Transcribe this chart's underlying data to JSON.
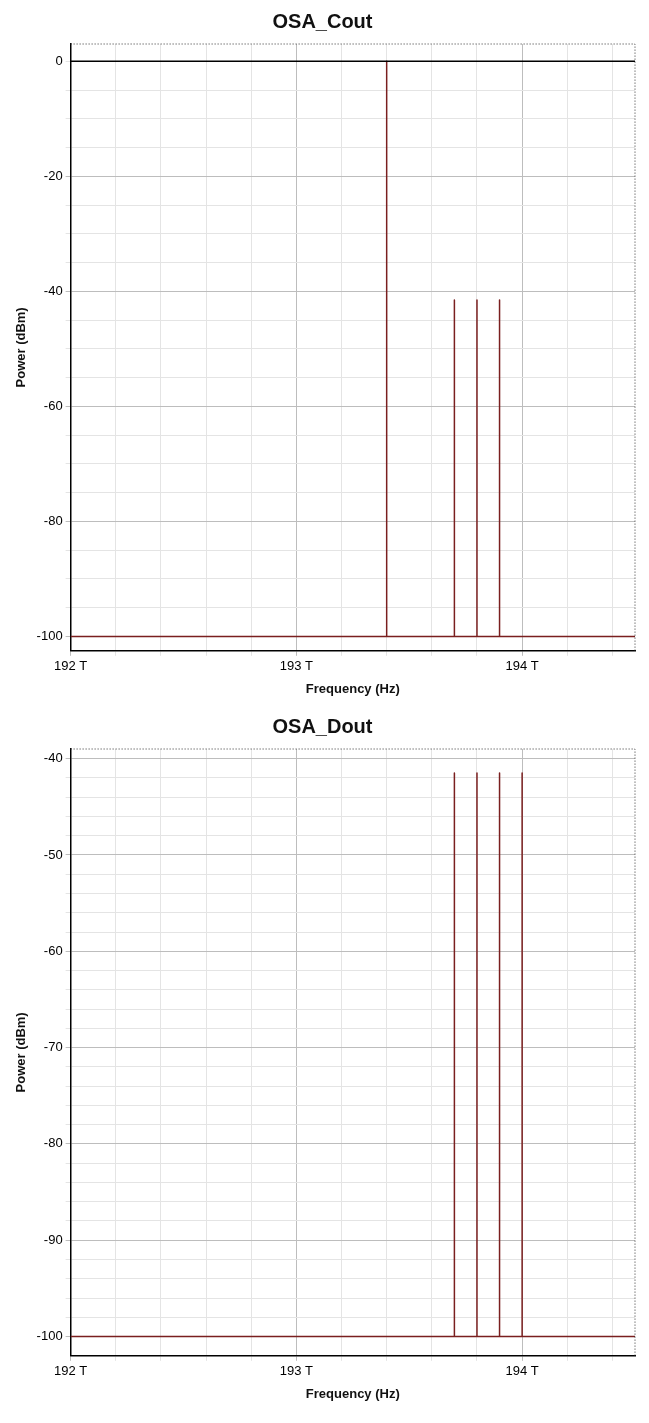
{
  "chart_data": [
    {
      "type": "line",
      "title": "OSA_Cout",
      "xlabel": "Frequency (Hz)",
      "ylabel": "Power (dBm)",
      "xlim": [
        192,
        194.5
      ],
      "xticks": [
        {
          "value": 192,
          "label": "192 T"
        },
        {
          "value": 192.2,
          "label": null
        },
        {
          "value": 192.4,
          "label": null
        },
        {
          "value": 192.6,
          "label": null
        },
        {
          "value": 192.8,
          "label": null
        },
        {
          "value": 193,
          "label": "193 T"
        },
        {
          "value": 193.2,
          "label": null
        },
        {
          "value": 193.4,
          "label": null
        },
        {
          "value": 193.6,
          "label": null
        },
        {
          "value": 193.8,
          "label": null
        },
        {
          "value": 194,
          "label": "194 T"
        },
        {
          "value": 194.2,
          "label": null
        },
        {
          "value": 194.4,
          "label": null
        }
      ],
      "ylim": [
        -102.5,
        3
      ],
      "yticks": [
        0,
        {
          "value": -5,
          "label": null
        },
        {
          "value": -10,
          "label": null
        },
        {
          "value": -15,
          "label": null
        },
        -20,
        {
          "value": -25,
          "label": null
        },
        {
          "value": -30,
          "label": null
        },
        {
          "value": -35,
          "label": null
        },
        -40,
        {
          "value": -45,
          "label": null
        },
        {
          "value": -50,
          "label": null
        },
        {
          "value": -55,
          "label": null
        },
        -60,
        {
          "value": -65,
          "label": null
        },
        {
          "value": -70,
          "label": null
        },
        {
          "value": -75,
          "label": null
        },
        -80,
        {
          "value": -85,
          "label": null
        },
        {
          "value": -90,
          "label": null
        },
        {
          "value": -95,
          "label": null
        },
        -100
      ],
      "grid": true,
      "legend": false,
      "marker": "none",
      "line_style": "solid",
      "ref_lines": [
        {
          "axis": "y",
          "value": 0,
          "color": "#000000"
        }
      ],
      "series": [
        {
          "color": "#7a1f1f",
          "x": [
            192,
            193.4,
            193.4,
            193.4,
            193.7,
            193.7,
            193.7,
            193.8,
            193.8,
            193.8,
            193.9,
            193.9,
            193.9,
            194.5
          ],
          "values": [
            -100,
            -100,
            0,
            -100,
            -100,
            -41.5,
            -100,
            -100,
            -41.5,
            -100,
            -100,
            -41.5,
            -100,
            -100
          ]
        }
      ]
    },
    {
      "type": "line",
      "title": "OSA_Dout",
      "xlabel": "Frequency (Hz)",
      "ylabel": "Power (dBm)",
      "xlim": [
        192,
        194.5
      ],
      "xticks": [
        {
          "value": 192,
          "label": "192 T"
        },
        {
          "value": 192.2,
          "label": null
        },
        {
          "value": 192.4,
          "label": null
        },
        {
          "value": 192.6,
          "label": null
        },
        {
          "value": 192.8,
          "label": null
        },
        {
          "value": 193,
          "label": "193 T"
        },
        {
          "value": 193.2,
          "label": null
        },
        {
          "value": 193.4,
          "label": null
        },
        {
          "value": 193.6,
          "label": null
        },
        {
          "value": 193.8,
          "label": null
        },
        {
          "value": 194,
          "label": "194 T"
        },
        {
          "value": 194.2,
          "label": null
        },
        {
          "value": 194.4,
          "label": null
        }
      ],
      "ylim": [
        -102,
        -39
      ],
      "yticks": [
        -40,
        {
          "value": -42,
          "label": null
        },
        {
          "value": -44,
          "label": null
        },
        {
          "value": -46,
          "label": null
        },
        {
          "value": -48,
          "label": null
        },
        -50,
        {
          "value": -52,
          "label": null
        },
        {
          "value": -54,
          "label": null
        },
        {
          "value": -56,
          "label": null
        },
        {
          "value": -58,
          "label": null
        },
        -60,
        {
          "value": -62,
          "label": null
        },
        {
          "value": -64,
          "label": null
        },
        {
          "value": -66,
          "label": null
        },
        {
          "value": -68,
          "label": null
        },
        -70,
        {
          "value": -72,
          "label": null
        },
        {
          "value": -74,
          "label": null
        },
        {
          "value": -76,
          "label": null
        },
        {
          "value": -78,
          "label": null
        },
        -80,
        {
          "value": -82,
          "label": null
        },
        {
          "value": -84,
          "label": null
        },
        {
          "value": -86,
          "label": null
        },
        {
          "value": -88,
          "label": null
        },
        -90,
        {
          "value": -92,
          "label": null
        },
        {
          "value": -94,
          "label": null
        },
        {
          "value": -96,
          "label": null
        },
        {
          "value": -98,
          "label": null
        },
        -100
      ],
      "grid": true,
      "legend": false,
      "marker": "none",
      "line_style": "solid",
      "series": [
        {
          "color": "#7a1f1f",
          "x": [
            192,
            193.7,
            193.7,
            193.7,
            193.8,
            193.8,
            193.8,
            193.9,
            193.9,
            193.9,
            194,
            194,
            194,
            194.5
          ],
          "values": [
            -100,
            -100,
            -41.5,
            -100,
            -100,
            -41.5,
            -100,
            -100,
            -41.5,
            -100,
            -100,
            -41.5,
            -100,
            -100
          ]
        }
      ]
    }
  ]
}
